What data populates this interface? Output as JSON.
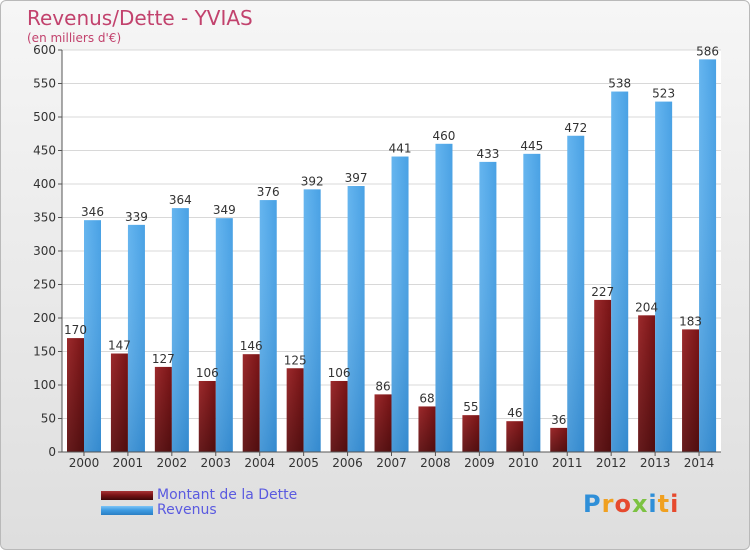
{
  "title": "Revenus/Dette - YVIAS",
  "subtitle": "(en milliers d'€)",
  "legend": {
    "debt_label": "Montant de la Dette",
    "revenue_label": "Revenus"
  },
  "logo": {
    "text": "Proxiti",
    "letters": [
      {
        "ch": "P",
        "color": "#2f8fd8"
      },
      {
        "ch": "r",
        "color": "#f0a020"
      },
      {
        "ch": "o",
        "color": "#e64a2e"
      },
      {
        "ch": "x",
        "color": "#7cc242"
      },
      {
        "ch": "i",
        "color": "#2f8fd8"
      },
      {
        "ch": "t",
        "color": "#f0a020"
      },
      {
        "ch": "i",
        "color": "#e64a2e"
      }
    ]
  },
  "colors": {
    "debt": "#7a1416",
    "revenue": "#3f9ce3",
    "title": "#c2426d",
    "legend_text": "#5a5ae0"
  },
  "chart_data": {
    "type": "bar",
    "title": "Revenus/Dette - YVIAS",
    "subtitle": "(en milliers d'€)",
    "categories": [
      "2000",
      "2001",
      "2002",
      "2003",
      "2004",
      "2005",
      "2006",
      "2007",
      "2008",
      "2009",
      "2010",
      "2011",
      "2012",
      "2013",
      "2014"
    ],
    "series": [
      {
        "name": "Montant de la Dette",
        "values": [
          170,
          147,
          127,
          106,
          146,
          125,
          106,
          86,
          68,
          55,
          46,
          36,
          227,
          204,
          183
        ]
      },
      {
        "name": "Revenus",
        "values": [
          346,
          339,
          364,
          349,
          376,
          392,
          397,
          441,
          460,
          433,
          445,
          472,
          538,
          523,
          586
        ]
      }
    ],
    "ylim": [
      0,
      600
    ],
    "yticks": [
      0,
      50,
      100,
      150,
      200,
      250,
      300,
      350,
      400,
      450,
      500,
      550,
      600
    ],
    "grid": true,
    "legend_position": "bottom-left"
  }
}
